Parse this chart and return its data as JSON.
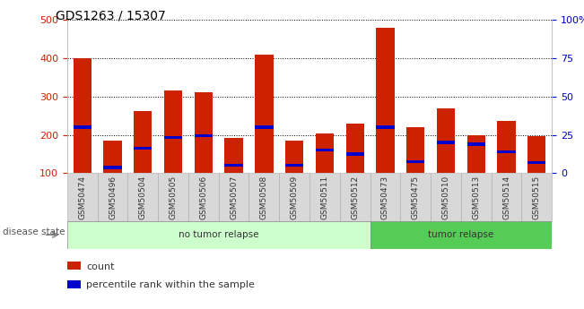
{
  "title": "GDS1263 / 15307",
  "samples": [
    "GSM50474",
    "GSM50496",
    "GSM50504",
    "GSM50505",
    "GSM50506",
    "GSM50507",
    "GSM50508",
    "GSM50509",
    "GSM50511",
    "GSM50512",
    "GSM50473",
    "GSM50475",
    "GSM50510",
    "GSM50513",
    "GSM50514",
    "GSM50515"
  ],
  "counts": [
    400,
    185,
    263,
    315,
    312,
    192,
    410,
    185,
    203,
    230,
    480,
    220,
    270,
    200,
    237,
    197
  ],
  "percentile_vals": [
    220,
    115,
    165,
    193,
    198,
    120,
    220,
    120,
    160,
    150,
    220,
    130,
    180,
    175,
    155,
    127
  ],
  "group_colors": {
    "no tumor relapse": "#ccffcc",
    "tumor relapse": "#55cc55"
  },
  "bar_color": "#cc2200",
  "percentile_color": "#0000cc",
  "ylim_left": [
    100,
    500
  ],
  "ylim_right": [
    0,
    100
  ],
  "yticks_left": [
    100,
    200,
    300,
    400,
    500
  ],
  "yticks_right": [
    0,
    25,
    50,
    75,
    100
  ],
  "ytick_labels_right": [
    "0",
    "25",
    "50",
    "75",
    "100%"
  ],
  "bar_width": 0.6,
  "left_tick_color": "#cc2200",
  "right_tick_color": "#0000cc",
  "disease_state_label": "disease state",
  "legend_count_label": "count",
  "legend_percentile_label": "percentile rank within the sample",
  "split_index": 10,
  "no_relapse_label": "no tumor relapse",
  "relapse_label": "tumor relapse",
  "blue_bar_height": 8
}
